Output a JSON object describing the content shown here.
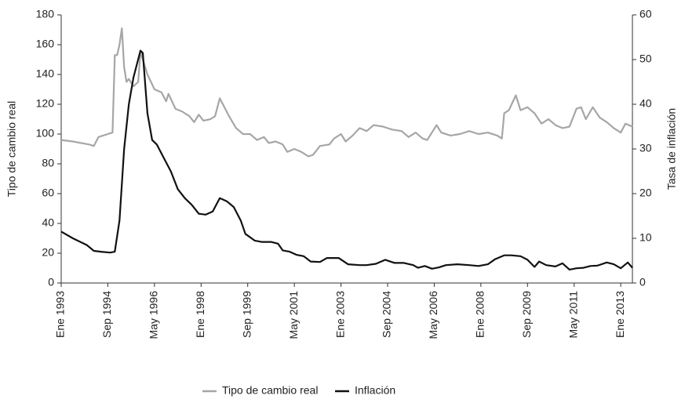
{
  "chart_data": {
    "type": "line",
    "y_label": "Tipo de cambio real",
    "y2_label": "Tasa de inflación",
    "xlim": [
      "1993-01",
      "2013-06"
    ],
    "xticks": [
      {
        "value": "1993-01",
        "label": "Ene 1993"
      },
      {
        "value": "1994-09",
        "label": "Sep 1994"
      },
      {
        "value": "1996-05",
        "label": "May 1996"
      },
      {
        "value": "1998-01",
        "label": "Ene 1998"
      },
      {
        "value": "1999-09",
        "label": "Sep 1999"
      },
      {
        "value": "2001-05",
        "label": "May 2001"
      },
      {
        "value": "2003-01",
        "label": "Ene 2003"
      },
      {
        "value": "2004-09",
        "label": "Sep 2004"
      },
      {
        "value": "2006-05",
        "label": "May 2006"
      },
      {
        "value": "2008-01",
        "label": "Ene 2008"
      },
      {
        "value": "2009-09",
        "label": "Sep 2009"
      },
      {
        "value": "2011-05",
        "label": "May 2011"
      },
      {
        "value": "2013-01",
        "label": "Ene 2013"
      }
    ],
    "ylim": [
      0,
      180
    ],
    "yticks": [
      0,
      20,
      40,
      60,
      80,
      100,
      120,
      140,
      160,
      180
    ],
    "y2lim": [
      0,
      60
    ],
    "y2ticks": [
      0,
      10,
      20,
      30,
      40,
      50,
      60
    ],
    "legend": "bottom",
    "series": [
      {
        "name": "Tipo de cambio real",
        "color": "#a6a6a6",
        "x": [
          "1993-01",
          "1993-06",
          "1994-01",
          "1994-03",
          "1994-05",
          "1994-09",
          "1994-11",
          "1994-12",
          "1995-01",
          "1995-02",
          "1995-03",
          "1995-04",
          "1995-05",
          "1995-06",
          "1995-08",
          "1995-10",
          "1995-11",
          "1995-12",
          "1996-02",
          "1996-05",
          "1996-08",
          "1996-10",
          "1996-11",
          "1997-02",
          "1997-05",
          "1997-08",
          "1997-10",
          "1997-12",
          "1998-02",
          "1998-05",
          "1998-07",
          "1998-09",
          "1998-11",
          "1999-01",
          "1999-04",
          "1999-07",
          "1999-10",
          "2000-01",
          "2000-04",
          "2000-06",
          "2000-09",
          "2000-12",
          "2001-02",
          "2001-05",
          "2001-08",
          "2001-11",
          "2002-01",
          "2002-04",
          "2002-08",
          "2002-10",
          "2003-01",
          "2003-03",
          "2003-06",
          "2003-09",
          "2003-12",
          "2004-03",
          "2004-07",
          "2004-11",
          "2005-03",
          "2005-06",
          "2005-09",
          "2005-12",
          "2006-02",
          "2006-06",
          "2006-08",
          "2006-12",
          "2007-04",
          "2007-08",
          "2007-12",
          "2008-04",
          "2008-08",
          "2008-10",
          "2008-11",
          "2009-01",
          "2009-04",
          "2009-06",
          "2009-09",
          "2009-12",
          "2010-03",
          "2010-06",
          "2010-09",
          "2010-12",
          "2011-03",
          "2011-06",
          "2011-08",
          "2011-10",
          "2012-01",
          "2012-04",
          "2012-07",
          "2012-10",
          "2013-01",
          "2013-03",
          "2013-06"
        ],
        "values": [
          96,
          95,
          93,
          92,
          98,
          100,
          101,
          153,
          153,
          160,
          171,
          145,
          135,
          137,
          132,
          135,
          155,
          150,
          140,
          130,
          128,
          122,
          127,
          117,
          115,
          112,
          108,
          113,
          109,
          110,
          112,
          124,
          118,
          112,
          104,
          100,
          100,
          96,
          98,
          94,
          95,
          93,
          88,
          90,
          88,
          85,
          86,
          92,
          93,
          97,
          100,
          95,
          99,
          104,
          102,
          106,
          105,
          103,
          102,
          98,
          101,
          97,
          96,
          106,
          101,
          99,
          100,
          102,
          100,
          101,
          99,
          97,
          114,
          116,
          126,
          116,
          118,
          114,
          107,
          110,
          106,
          104,
          105,
          117,
          118,
          110,
          118,
          111,
          108,
          104,
          101,
          107,
          105
        ]
      },
      {
        "name": "Inflación",
        "color": "#111111",
        "axis": "y2",
        "x": [
          "1993-01",
          "1993-06",
          "1993-12",
          "1994-03",
          "1994-06",
          "1994-10",
          "1994-12",
          "1995-02",
          "1995-04",
          "1995-06",
          "1995-08",
          "1995-11",
          "1995-12",
          "1996-02",
          "1996-04",
          "1996-06",
          "1996-09",
          "1996-12",
          "1997-03",
          "1997-06",
          "1997-09",
          "1997-12",
          "1998-03",
          "1998-06",
          "1998-09",
          "1998-12",
          "1999-03",
          "1999-06",
          "1999-08",
          "1999-12",
          "2000-03",
          "2000-07",
          "2000-10",
          "2000-12",
          "2001-03",
          "2001-06",
          "2001-09",
          "2001-12",
          "2002-04",
          "2002-07",
          "2002-12",
          "2003-04",
          "2003-09",
          "2003-12",
          "2004-04",
          "2004-08",
          "2004-12",
          "2005-04",
          "2005-08",
          "2005-10",
          "2006-01",
          "2006-04",
          "2006-07",
          "2006-10",
          "2007-03",
          "2007-08",
          "2007-12",
          "2008-04",
          "2008-07",
          "2008-11",
          "2009-02",
          "2009-06",
          "2009-09",
          "2009-12",
          "2010-02",
          "2010-05",
          "2010-09",
          "2010-12",
          "2011-03",
          "2011-06",
          "2011-09",
          "2011-12",
          "2012-03",
          "2012-07",
          "2012-10",
          "2013-01",
          "2013-04",
          "2013-06"
        ],
        "values": [
          11.5,
          10,
          8.5,
          7.2,
          7,
          6.8,
          7,
          14,
          30,
          40,
          46,
          52,
          51.5,
          38,
          32,
          31,
          28,
          25,
          21,
          19,
          17.5,
          15.5,
          15.3,
          16,
          19,
          18.3,
          17,
          14,
          11,
          9.5,
          9.2,
          9.2,
          8.8,
          7.3,
          7,
          6.3,
          6,
          4.8,
          4.7,
          5.6,
          5.6,
          4.2,
          4,
          4,
          4.3,
          5.2,
          4.5,
          4.5,
          4,
          3.4,
          3.8,
          3.2,
          3.5,
          4,
          4.2,
          4,
          3.8,
          4.2,
          5.3,
          6.2,
          6.2,
          6,
          5.2,
          3.6,
          4.8,
          4,
          3.7,
          4.4,
          3,
          3.3,
          3.4,
          3.8,
          3.9,
          4.6,
          4.2,
          3.3,
          4.6,
          3.4
        ]
      }
    ]
  }
}
